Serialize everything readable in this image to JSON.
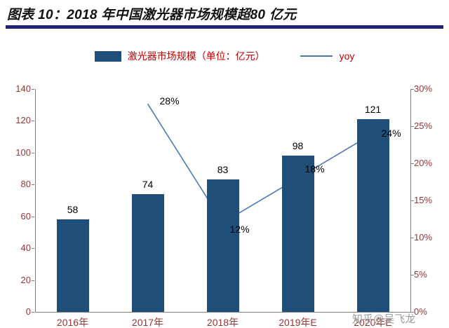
{
  "header": {
    "title": "图表 10：2018 年中国激光器市场规模超80 亿元"
  },
  "legend": {
    "bar_label": "激光器市场规模（单位：亿元）",
    "line_label": "yoy"
  },
  "watermark": "知乎@吴飞龙",
  "colors": {
    "bar": "#1F4E79",
    "line": "#4E79B8",
    "title_rule": "#23227A",
    "axis_text": "#953735",
    "legend_text": "#C00000"
  },
  "chart_data": {
    "type": "bar",
    "subtype": "bar+line combo, secondary axis",
    "title": "图表 10：2018 年中国激光器市场规模超80 亿元",
    "categories": [
      "2016年",
      "2017年",
      "2018年",
      "2019年E",
      "2020年E"
    ],
    "series": [
      {
        "name": "激光器市场规模（单位：亿元）",
        "type": "bar",
        "axis": "left",
        "values": [
          58,
          74,
          83,
          98,
          121
        ]
      },
      {
        "name": "yoy",
        "type": "line",
        "axis": "right",
        "unit": "%",
        "values": [
          null,
          28,
          12,
          18,
          24
        ]
      }
    ],
    "bar_labels": [
      "58",
      "74",
      "83",
      "98",
      "121"
    ],
    "line_labels": [
      "28%",
      "12%",
      "18%",
      "24%"
    ],
    "left_axis": {
      "min": 0,
      "max": 140,
      "step": 20,
      "ticks": [
        "140",
        "120",
        "100",
        "80",
        "60",
        "40",
        "20",
        "0"
      ]
    },
    "right_axis": {
      "min": 0,
      "max": 30,
      "step": 5,
      "format": "percent",
      "ticks": [
        "30%",
        "25%",
        "20%",
        "15%",
        "10%",
        "5%",
        "0%"
      ]
    },
    "grid": false,
    "legend_position": "top-center"
  }
}
